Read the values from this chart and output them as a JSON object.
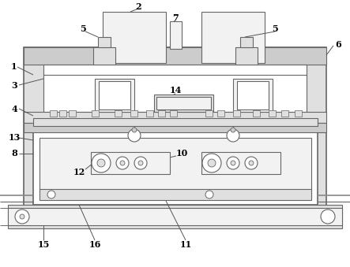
{
  "line_color": "#666666",
  "fill_light": "#f2f2f2",
  "fill_mid": "#e0e0e0",
  "fill_dark": "#cccccc",
  "lw": 0.8,
  "lw_thick": 1.2
}
